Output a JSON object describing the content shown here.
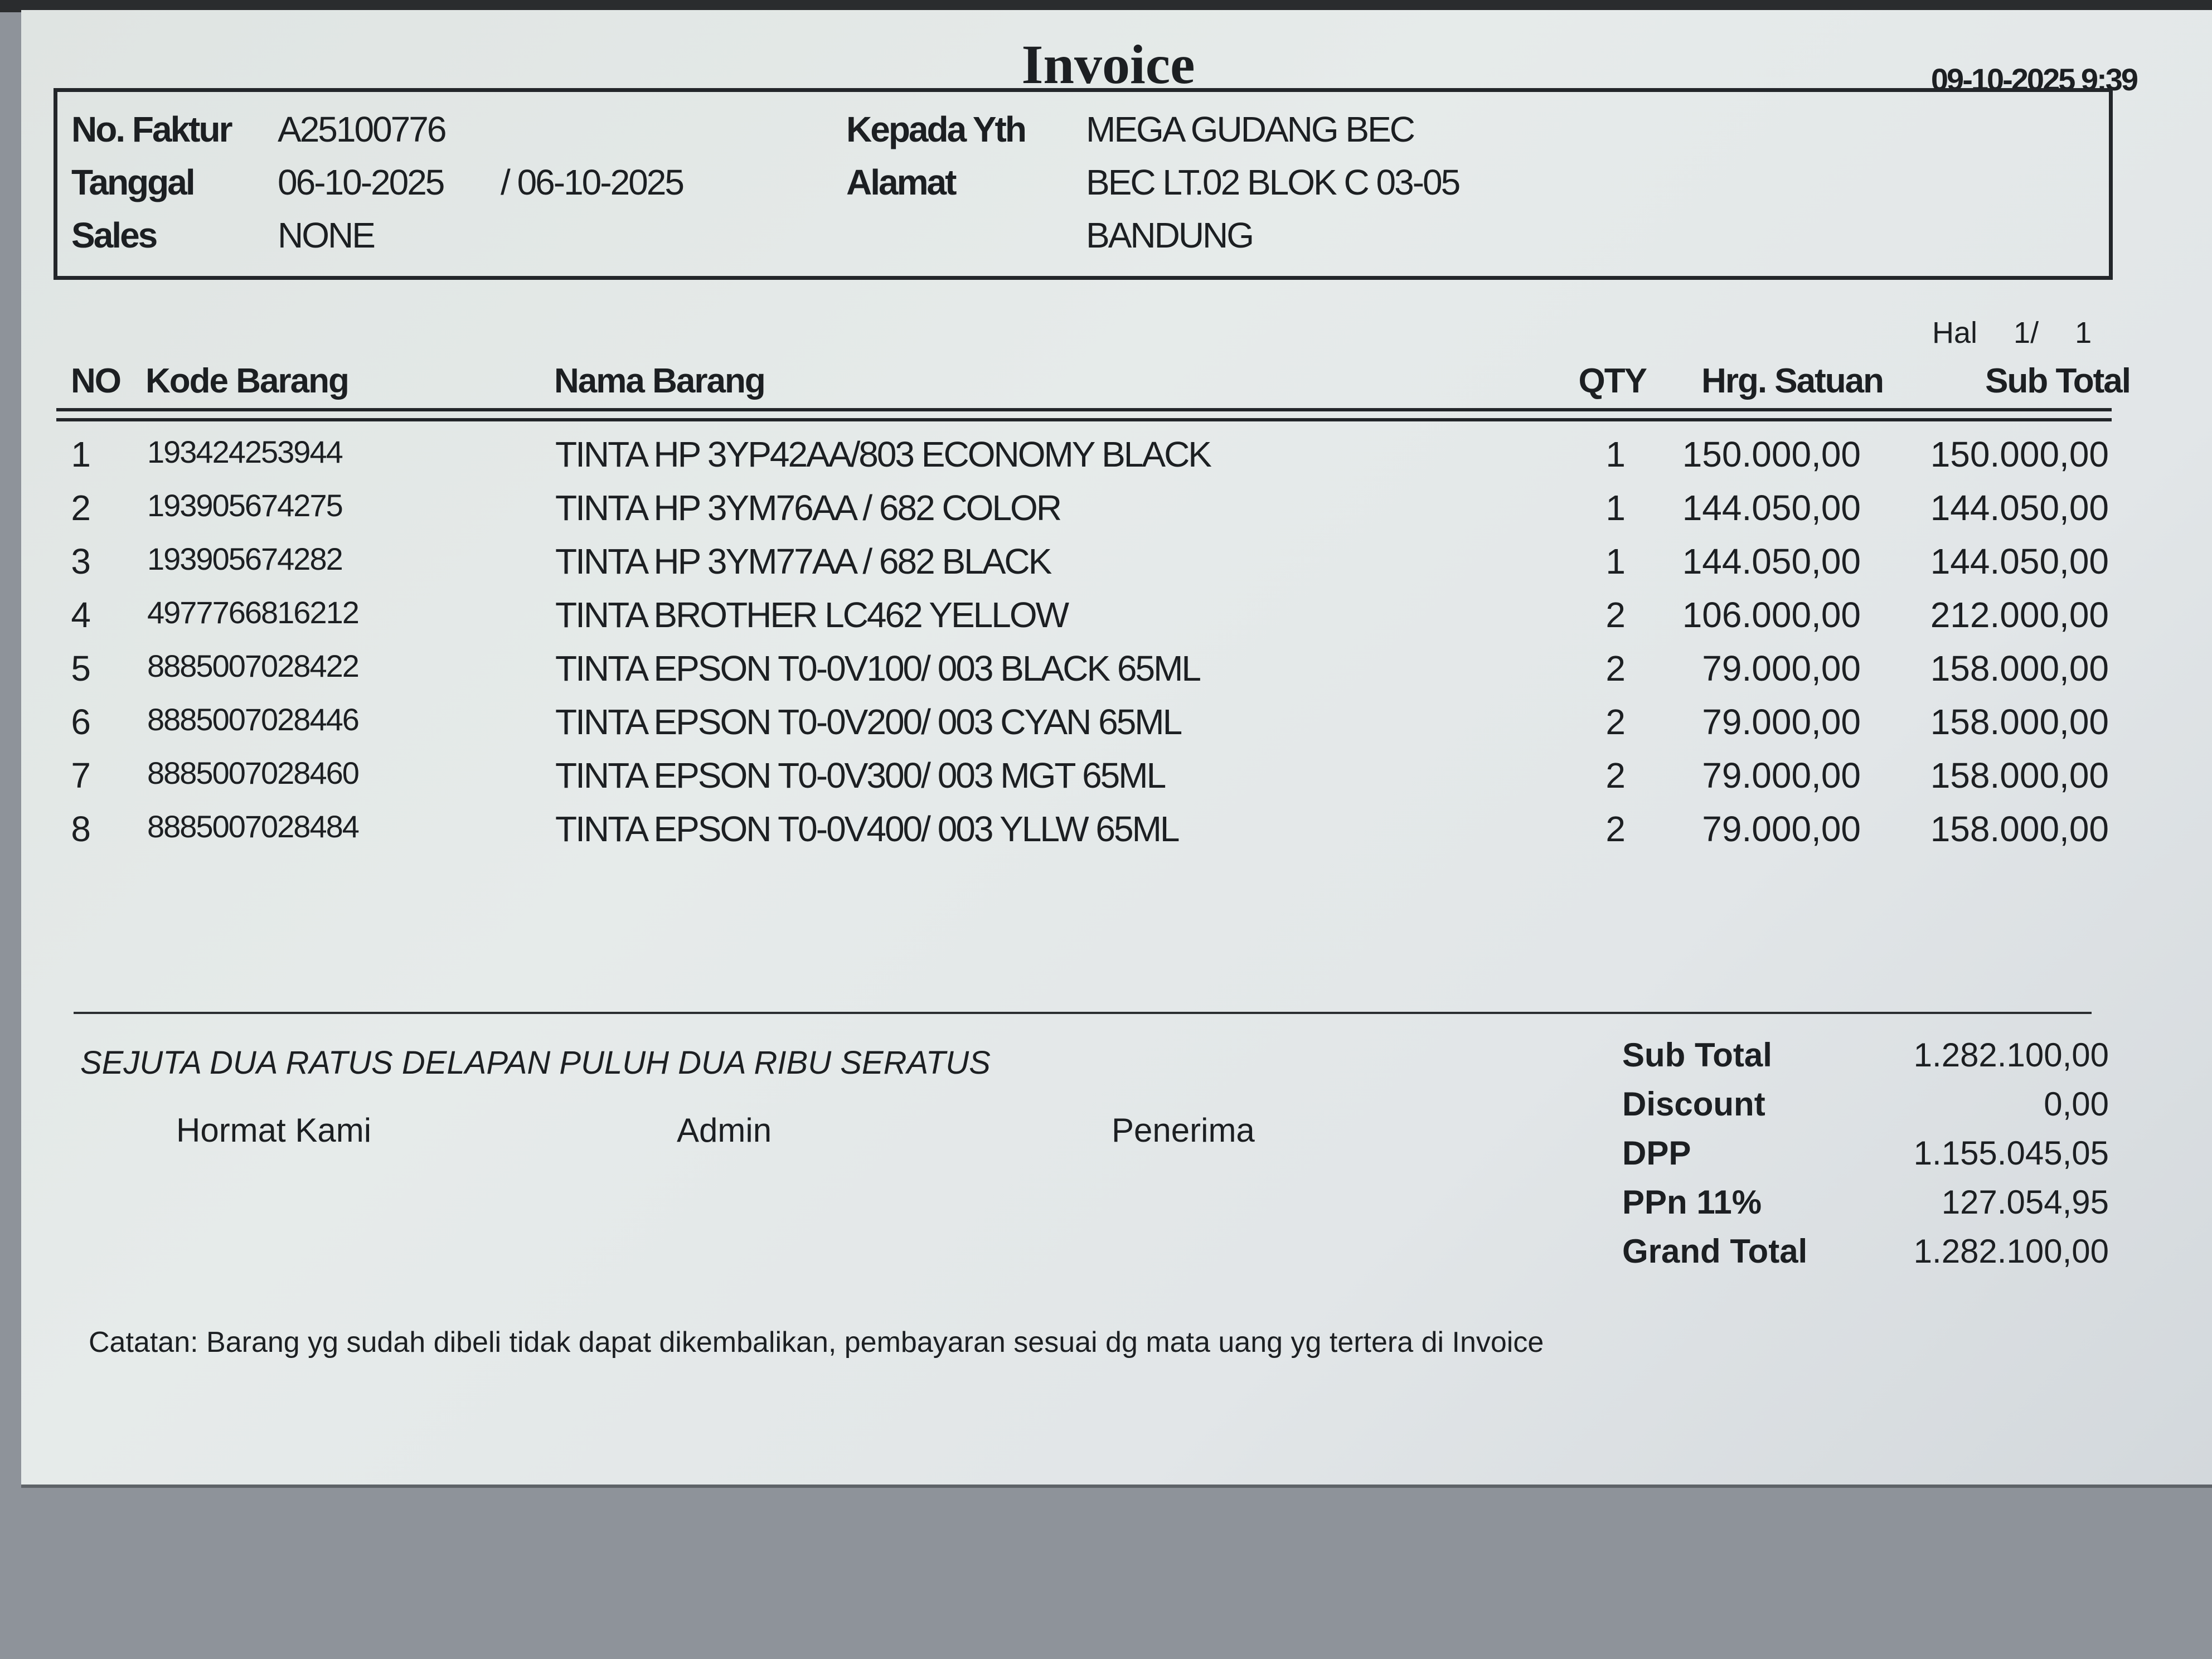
{
  "title": "Invoice",
  "printed_at": "09-10-2025 9:39",
  "header": {
    "no_faktur_label": "No. Faktur",
    "no_faktur": "A25100776",
    "tanggal_label": "Tanggal",
    "tanggal": "06-10-2025",
    "tanggal_due": "/ 06-10-2025",
    "sales_label": "Sales",
    "sales": "NONE",
    "kepada_label": "Kepada Yth",
    "kepada": "MEGA GUDANG BEC",
    "alamat_label": "Alamat",
    "alamat_1": "BEC LT.02 BLOK C 03-05",
    "alamat_2": "BANDUNG"
  },
  "page": {
    "label": "Hal",
    "current": "1/",
    "total": "1"
  },
  "columns": {
    "no": "NO",
    "code": "Kode Barang",
    "name": "Nama Barang",
    "qty": "QTY",
    "price": "Hrg. Satuan",
    "subtotal": "Sub Total"
  },
  "items": [
    {
      "no": "1",
      "code": "193424253944",
      "name": "TINTA HP 3YP42AA/803 ECONOMY BLACK",
      "qty": "1",
      "price": "150.000,00",
      "subtotal": "150.000,00"
    },
    {
      "no": "2",
      "code": "193905674275",
      "name": "TINTA HP 3YM76AA / 682 COLOR",
      "qty": "1",
      "price": "144.050,00",
      "subtotal": "144.050,00"
    },
    {
      "no": "3",
      "code": "193905674282",
      "name": "TINTA HP 3YM77AA / 682 BLACK",
      "qty": "1",
      "price": "144.050,00",
      "subtotal": "144.050,00"
    },
    {
      "no": "4",
      "code": "4977766816212",
      "name": "TINTA BROTHER LC462 YELLOW",
      "qty": "2",
      "price": "106.000,00",
      "subtotal": "212.000,00"
    },
    {
      "no": "5",
      "code": "8885007028422",
      "name": "TINTA EPSON T0-0V100/ 003 BLACK 65ML",
      "qty": "2",
      "price": "79.000,00",
      "subtotal": "158.000,00"
    },
    {
      "no": "6",
      "code": "8885007028446",
      "name": "TINTA EPSON T0-0V200/ 003 CYAN 65ML",
      "qty": "2",
      "price": "79.000,00",
      "subtotal": "158.000,00"
    },
    {
      "no": "7",
      "code": "8885007028460",
      "name": "TINTA EPSON T0-0V300/ 003 MGT 65ML",
      "qty": "2",
      "price": "79.000,00",
      "subtotal": "158.000,00"
    },
    {
      "no": "8",
      "code": "8885007028484",
      "name": "TINTA EPSON T0-0V400/ 003 YLLW 65ML",
      "qty": "2",
      "price": "79.000,00",
      "subtotal": "158.000,00"
    }
  ],
  "amount_in_words": "SEJUTA DUA RATUS DELAPAN PULUH DUA RIBU SERATUS",
  "signatures": {
    "hormat": "Hormat Kami",
    "admin": "Admin",
    "penerima": "Penerima"
  },
  "totals": {
    "subtotal_label": "Sub Total",
    "subtotal": "1.282.100,00",
    "discount_label": "Discount",
    "discount": "0,00",
    "dpp_label": "DPP",
    "dpp": "1.155.045,05",
    "ppn_label": "PPn 11%",
    "ppn": "127.054,95",
    "grand_label": "Grand Total",
    "grand": "1.282.100,00"
  },
  "note": "Catatan: Barang yg sudah dibeli tidak dapat dikembalikan, pembayaran sesuai dg mata uang yg tertera di Invoice"
}
